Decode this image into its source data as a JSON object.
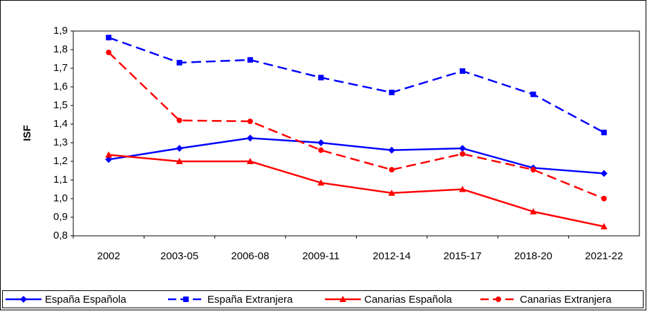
{
  "chart_data": {
    "type": "line",
    "y_label": "ISF",
    "categories": [
      "2002",
      "2003-05",
      "2006-08",
      "2009-11",
      "2012-14",
      "2015-17",
      "2018-20",
      "2021-22"
    ],
    "series": [
      {
        "name": "España Española",
        "color": "#0000ff",
        "dashed": false,
        "marker": "diamond",
        "values": [
          1.21,
          1.27,
          1.325,
          1.3,
          1.26,
          1.27,
          1.165,
          1.135
        ]
      },
      {
        "name": "España Extranjera",
        "color": "#0000ff",
        "dashed": true,
        "marker": "square",
        "values": [
          1.865,
          1.73,
          1.745,
          1.65,
          1.57,
          1.685,
          1.56,
          1.355
        ]
      },
      {
        "name": "Canarias Española",
        "color": "#ff0000",
        "dashed": false,
        "marker": "triangle",
        "values": [
          1.235,
          1.2,
          1.2,
          1.085,
          1.03,
          1.05,
          0.93,
          0.85
        ]
      },
      {
        "name": "Canarias Extranjera",
        "color": "#ff0000",
        "dashed": true,
        "marker": "circle",
        "values": [
          1.785,
          1.42,
          1.415,
          1.26,
          1.155,
          1.24,
          1.155,
          1.0
        ]
      }
    ],
    "ylim": [
      0.8,
      1.9
    ],
    "yticks": [
      {
        "value": 0.8,
        "label": "0,8"
      },
      {
        "value": 0.9,
        "label": "0,9"
      },
      {
        "value": 1.0,
        "label": "1,0"
      },
      {
        "value": 1.1,
        "label": "1,1"
      },
      {
        "value": 1.2,
        "label": "1,2"
      },
      {
        "value": 1.3,
        "label": "1,3"
      },
      {
        "value": 1.4,
        "label": "1,4"
      },
      {
        "value": 1.5,
        "label": "1,5"
      },
      {
        "value": 1.6,
        "label": "1,6"
      },
      {
        "value": 1.7,
        "label": "1,7"
      },
      {
        "value": 1.8,
        "label": "1,8"
      },
      {
        "value": 1.9,
        "label": "1,9"
      }
    ],
    "grid": false,
    "legend": "bottom"
  }
}
